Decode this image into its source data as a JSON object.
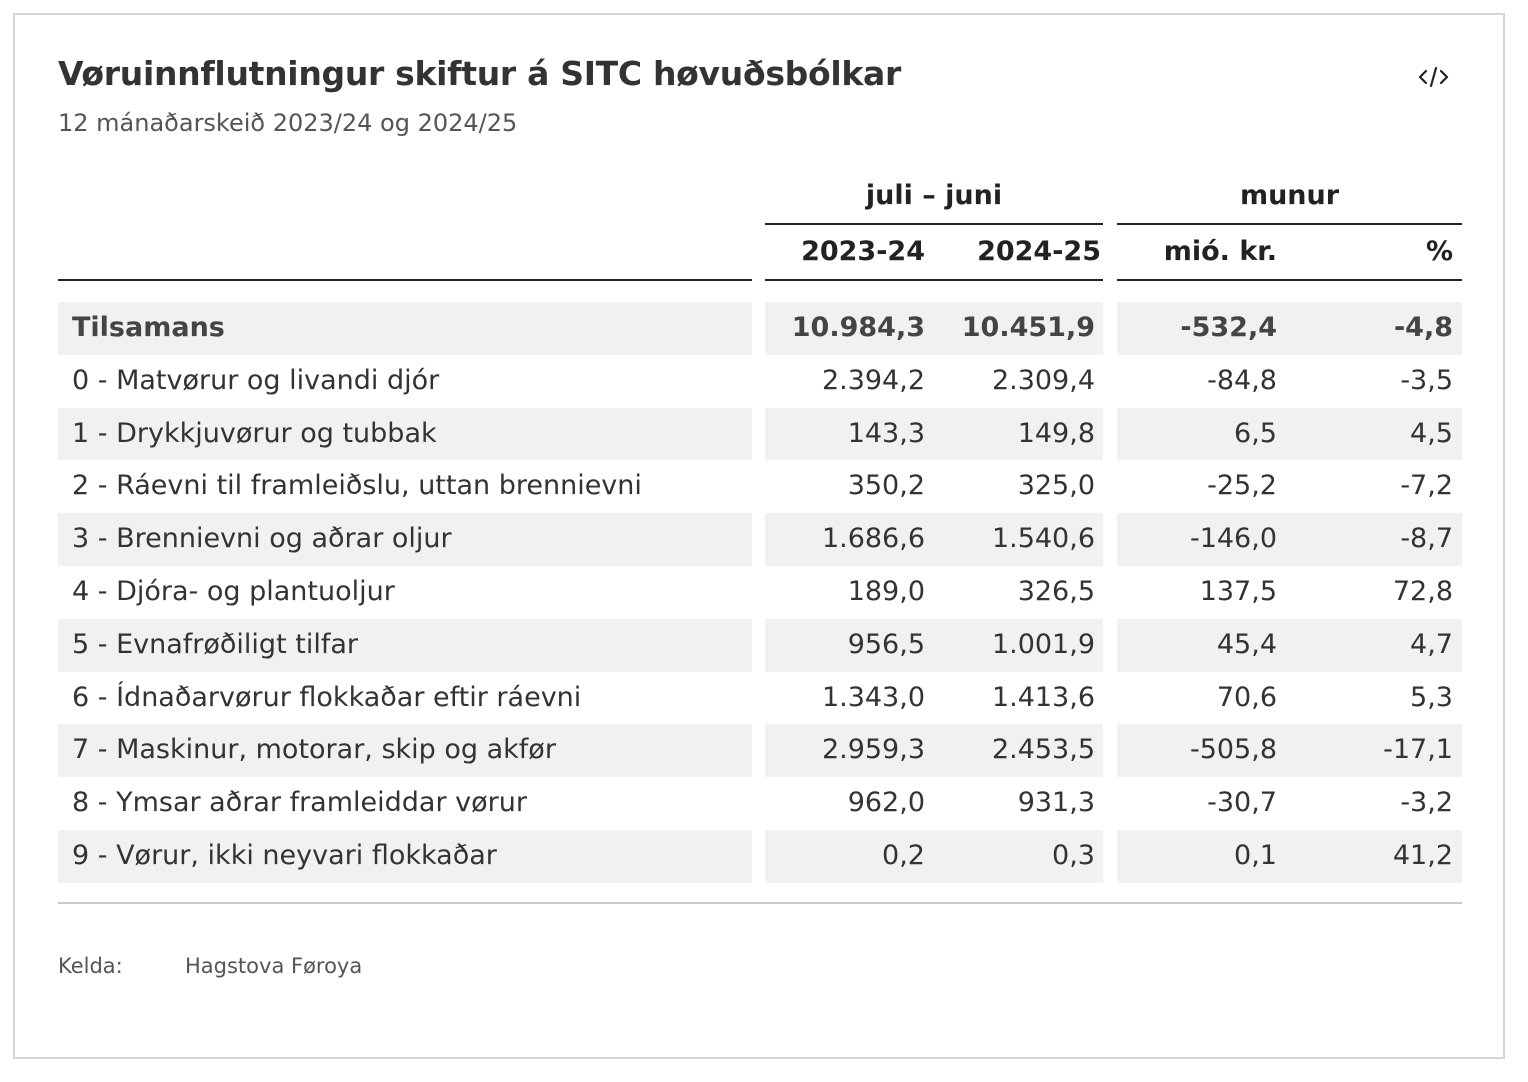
{
  "title": "Vøruinnflutningur skiftur á SITC høvuðsbólkar",
  "subtitle": "12 mánaðarskeið 2023/24 og 2024/25",
  "embed_icon": "code-embed-icon",
  "colors": {
    "row_shade": "#f1f1f1",
    "rule": "#222222",
    "text": "#333333"
  },
  "chart_data": {
    "type": "table",
    "header_groups": [
      "juli – juni",
      "munur"
    ],
    "columns": [
      "2023-24",
      "2024-25",
      "mió. kr.",
      "%"
    ],
    "rows": [
      {
        "label": "Tilsamans",
        "values": [
          "10.984,3",
          "10.451,9",
          "-532,4",
          "-4,8"
        ],
        "total": true
      },
      {
        "label": "0 - Matvørur og livandi djór",
        "values": [
          "2.394,2",
          "2.309,4",
          "-84,8",
          "-3,5"
        ]
      },
      {
        "label": "1 - Drykkjuvørur og tubbak",
        "values": [
          "143,3",
          "149,8",
          "6,5",
          "4,5"
        ]
      },
      {
        "label": "2 - Ráevni til framleiðslu, uttan brennievni",
        "values": [
          "350,2",
          "325,0",
          "-25,2",
          "-7,2"
        ]
      },
      {
        "label": "3 - Brennievni og aðrar oljur",
        "values": [
          "1.686,6",
          "1.540,6",
          "-146,0",
          "-8,7"
        ]
      },
      {
        "label": "4 - Djóra- og plantuoljur",
        "values": [
          "189,0",
          "326,5",
          "137,5",
          "72,8"
        ]
      },
      {
        "label": "5 - Evnafrøðiligt tilfar",
        "values": [
          "956,5",
          "1.001,9",
          "45,4",
          "4,7"
        ]
      },
      {
        "label": "6 - Ídnaðarvørur flokkaðar eftir ráevni",
        "values": [
          "1.343,0",
          "1.413,6",
          "70,6",
          "5,3"
        ]
      },
      {
        "label": "7 - Maskinur, motorar, skip og akfør",
        "values": [
          "2.959,3",
          "2.453,5",
          "-505,8",
          "-17,1"
        ]
      },
      {
        "label": "8 - Ymsar aðrar framleiddar vørur",
        "values": [
          "962,0",
          "931,3",
          "-30,7",
          "-3,2"
        ]
      },
      {
        "label": "9 - Vørur, ikki neyvari flokkaðar",
        "values": [
          "0,2",
          "0,3",
          "0,1",
          "41,2"
        ]
      }
    ]
  },
  "source": {
    "label": "Kelda:",
    "value": "Hagstova Føroya"
  }
}
